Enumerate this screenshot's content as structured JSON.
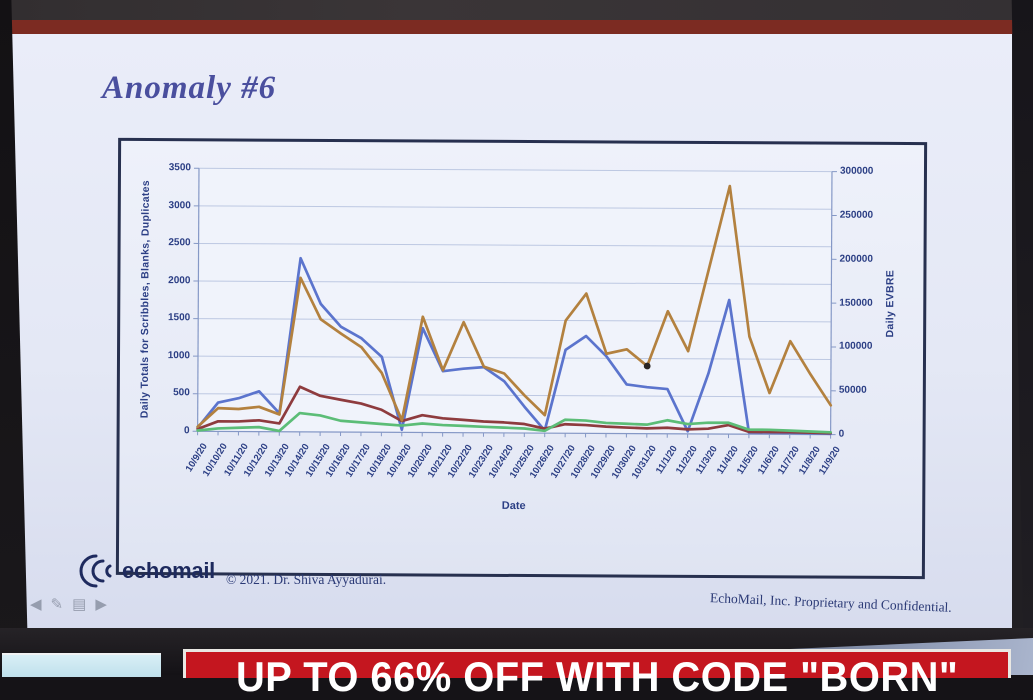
{
  "theme": {
    "maroon_bar": "#7c2b22",
    "banner_red": "#c4161f",
    "banner_text": "#ffffff",
    "title_color": "#4a4f9e",
    "chart_text": "#2c3f85",
    "logo_navy": "#1e2a5e",
    "grid": "#bdc8e2",
    "axis": "#8598c6"
  },
  "photo": {
    "banner_text": "UP TO 66% OFF WITH CODE \"BORN\""
  },
  "slide": {
    "title": "Anomaly #6",
    "footer": {
      "logo_text": "echomail",
      "copyright": "© 2021. Dr. Shiva Ayyadurai.",
      "confidential": "EchoMail, Inc. Proprietary and Confidential."
    },
    "nav_icons": [
      {
        "name": "previous-slide",
        "glyph": "◀"
      },
      {
        "name": "pen-tool",
        "glyph": "✎"
      },
      {
        "name": "slide-menu",
        "glyph": "▤"
      },
      {
        "name": "next-slide",
        "glyph": "▶"
      }
    ]
  },
  "chart_data": {
    "type": "line",
    "xlabel": "Date",
    "grid": "horizontal",
    "legend_position": "top-center",
    "x": [
      "10/9/20",
      "10/10/20",
      "10/11/20",
      "10/12/20",
      "10/13/20",
      "10/14/20",
      "10/15/20",
      "10/16/20",
      "10/17/20",
      "10/18/20",
      "10/19/20",
      "10/20/20",
      "10/21/20",
      "10/22/20",
      "10/23/20",
      "10/24/20",
      "10/25/20",
      "10/26/20",
      "10/27/20",
      "10/28/20",
      "10/29/20",
      "10/30/20",
      "10/31/20",
      "11/1/20",
      "11/2/20",
      "11/3/20",
      "11/4/20",
      "11/5/20",
      "11/6/20",
      "11/7/20",
      "11/8/20",
      "11/9/20"
    ],
    "left_axis": {
      "label": "Daily Totals for Scribbles, Blanks, Duplicates",
      "max": 3500,
      "ticks": [
        "0",
        "500",
        "1000",
        "1500",
        "2000",
        "2500",
        "3000",
        "3500"
      ]
    },
    "right_axis": {
      "label": "Daily EVBRE",
      "max": 300000,
      "ticks": [
        "0",
        "50000",
        "100000",
        "150000",
        "200000",
        "250000",
        "300000"
      ]
    },
    "series": [
      {
        "name": "EVBRE",
        "axis": "right",
        "color": "#5b74cd",
        "values": [
          4000,
          33000,
          38000,
          46000,
          21000,
          198000,
          146000,
          120000,
          107000,
          86000,
          3000,
          119000,
          70000,
          73000,
          75000,
          59000,
          30000,
          3000,
          95000,
          111000,
          88000,
          56000,
          53000,
          51000,
          3000,
          69000,
          153000,
          2000,
          2000,
          2000,
          1500,
          1000
        ]
      },
      {
        "name": "Blanks",
        "axis": "left",
        "color": "#8e3b3e",
        "values": [
          30,
          135,
          135,
          150,
          110,
          600,
          480,
          430,
          380,
          300,
          150,
          230,
          190,
          170,
          150,
          140,
          120,
          60,
          120,
          110,
          90,
          80,
          70,
          80,
          60,
          70,
          120,
          30,
          30,
          30,
          25,
          20
        ]
      },
      {
        "name": "Scribbles",
        "axis": "left",
        "color": "#5cbd77",
        "values": [
          10,
          40,
          50,
          60,
          10,
          250,
          220,
          150,
          130,
          110,
          90,
          120,
          100,
          90,
          80,
          70,
          60,
          30,
          180,
          170,
          140,
          130,
          120,
          180,
          130,
          150,
          150,
          60,
          60,
          50,
          40,
          30
        ]
      },
      {
        "name": "Duplicates",
        "axis": "left",
        "color": "#b3813f",
        "values": [
          60,
          310,
          300,
          330,
          230,
          2050,
          1500,
          1310,
          1130,
          790,
          160,
          1540,
          830,
          1470,
          880,
          790,
          500,
          240,
          1500,
          1860,
          1060,
          1120,
          900,
          1630,
          1100,
          2200,
          3300,
          1300,
          550,
          1240,
          800,
          390
        ]
      }
    ],
    "cursor_dot": {
      "series": "Duplicates",
      "index": 22
    }
  }
}
